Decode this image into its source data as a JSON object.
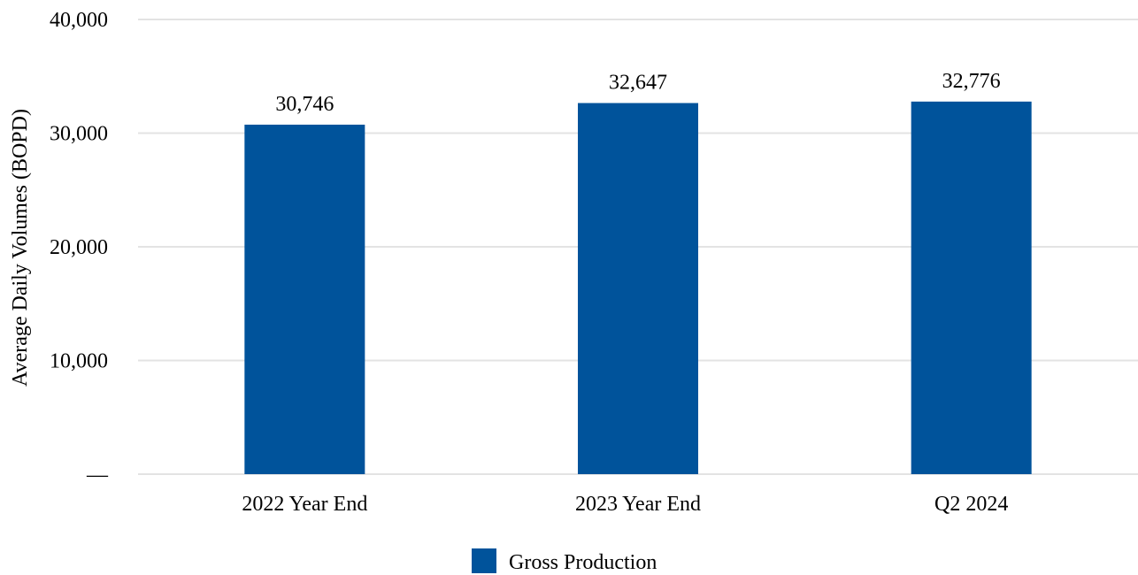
{
  "chart_data": {
    "type": "bar",
    "categories": [
      "2022 Year End",
      "2023 Year End",
      "Q2 2024"
    ],
    "series": [
      {
        "name": "Gross Production",
        "values": [
          30746,
          32647,
          32776
        ],
        "data_labels": [
          "30,746",
          "32,647",
          "32,776"
        ],
        "color": "#00539b"
      }
    ],
    "ylabel": "Average Daily Volumes (BOPD)",
    "xlabel": "",
    "ylim": [
      0,
      40000
    ],
    "yticks": [
      0,
      10000,
      20000,
      30000,
      40000
    ],
    "ytick_labels": [
      "—",
      "10,000",
      "20,000",
      "30,000",
      "40,000"
    ],
    "grid": true,
    "legend_position": "bottom"
  }
}
